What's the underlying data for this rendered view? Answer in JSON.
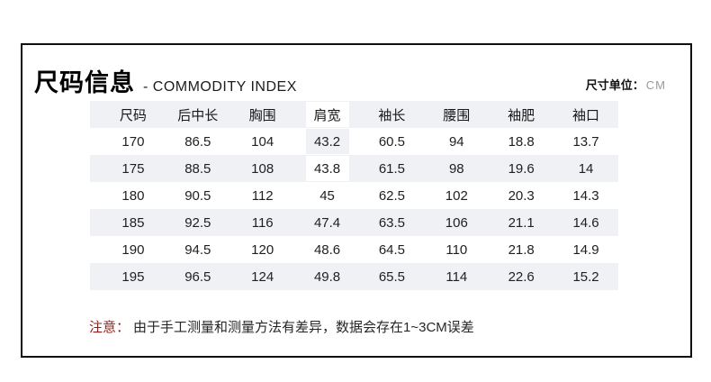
{
  "header": {
    "title": "尺码信息",
    "subtitle": "- COMMODITY INDEX",
    "unit_label": "尺寸单位：",
    "unit_value": "CM"
  },
  "table": {
    "columns": [
      "尺码",
      "后中长",
      "胸围",
      "肩宽",
      "袖长",
      "腰围",
      "袖肥",
      "袖口"
    ],
    "rows": [
      [
        "170",
        "86.5",
        "104",
        "43.2",
        "60.5",
        "94",
        "18.8",
        "13.7"
      ],
      [
        "175",
        "88.5",
        "108",
        "43.8",
        "61.5",
        "98",
        "19.6",
        "14"
      ],
      [
        "180",
        "90.5",
        "112",
        "45",
        "62.5",
        "102",
        "20.3",
        "14.3"
      ],
      [
        "185",
        "92.5",
        "116",
        "47.4",
        "63.5",
        "106",
        "21.1",
        "14.6"
      ],
      [
        "190",
        "94.5",
        "120",
        "48.6",
        "64.5",
        "110",
        "21.8",
        "14.9"
      ],
      [
        "195",
        "96.5",
        "124",
        "49.8",
        "65.5",
        "114",
        "22.6",
        "15.2"
      ]
    ]
  },
  "note": {
    "label": "注意：",
    "text": "由于手工测量和测量方法有差异，数据会存在1~3CM误差"
  },
  "colors": {
    "stripe": "#f0f1f4",
    "text": "#1f1f1f",
    "note_label": "#8a1f1a",
    "unit_value": "#9a9a9a",
    "frame_border": "#0f0f0f"
  }
}
